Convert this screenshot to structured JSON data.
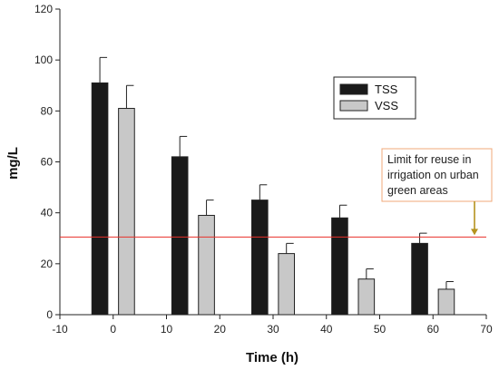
{
  "chart_data": {
    "type": "bar",
    "xlabel": "Time (h)",
    "ylabel": "mg/L",
    "xlim": [
      -10,
      70
    ],
    "ylim": [
      0,
      120
    ],
    "x_ticks": [
      -10,
      0,
      10,
      20,
      30,
      40,
      50,
      60,
      70
    ],
    "y_ticks": [
      0,
      20,
      40,
      60,
      80,
      100,
      120
    ],
    "grid": false,
    "legend_position": "top-right",
    "series": [
      {
        "name": "TSS",
        "color": "#1a1a1a",
        "x": [
          -2.5,
          12.5,
          27.5,
          42.5,
          57.5
        ],
        "values": [
          91,
          62,
          45,
          38,
          28
        ],
        "error": [
          10,
          8,
          6,
          5,
          4
        ]
      },
      {
        "name": "VSS",
        "color": "#c8c8c8",
        "x": [
          2.5,
          17.5,
          32.5,
          47.5,
          62.5
        ],
        "values": [
          81,
          39,
          24,
          14,
          10
        ],
        "error": [
          9,
          6,
          4,
          4,
          3
        ]
      }
    ],
    "reference_line": {
      "y": 30.5,
      "color": "#e8302a"
    },
    "annotation": {
      "lines": [
        "Limit for reuse in",
        "irrigation on urban",
        "green areas"
      ],
      "border_color": "#f0a878",
      "arrow_color": "#b5931e"
    }
  }
}
